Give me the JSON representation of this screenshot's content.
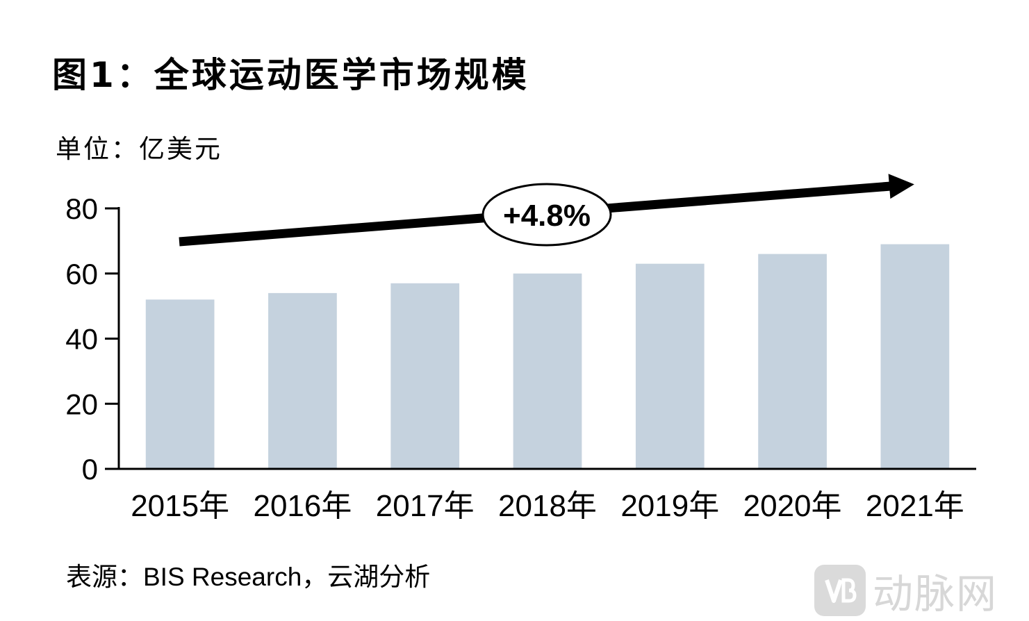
{
  "header": {
    "title": "图1：全球运动医学市场规模",
    "unit": "单位：亿美元"
  },
  "footer": {
    "source_prefix": "表源：",
    "source_name": "BIS Research",
    "source_suffix": "，云湖分析"
  },
  "watermark": {
    "text": "动脉网"
  },
  "colors": {
    "bar": "#c5d2de",
    "axis": "#000000",
    "arrow": "#000000"
  },
  "chart_data": {
    "type": "bar",
    "title": "图1：全球运动医学市场规模",
    "ylabel": "单位：亿美元",
    "xlabel": "",
    "categories": [
      "2015年",
      "2016年",
      "2017年",
      "2018年",
      "2019年",
      "2020年",
      "2021年"
    ],
    "values": [
      52,
      54,
      57,
      60,
      63,
      66,
      69
    ],
    "ylim": [
      0,
      80
    ],
    "yticks": [
      0,
      20,
      40,
      60,
      80
    ],
    "grid": false,
    "annotation": {
      "label": "+4.8%",
      "type": "cagr-arrow",
      "from_category": "2015年",
      "to_category": "2021年"
    }
  }
}
